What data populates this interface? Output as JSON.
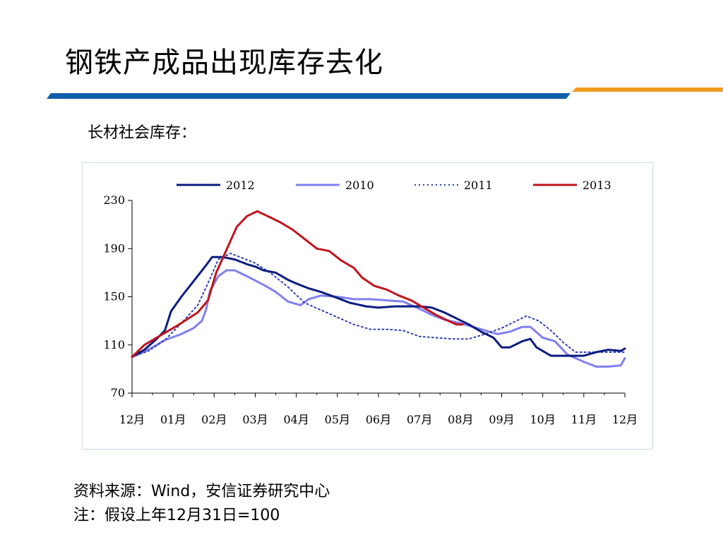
{
  "slide": {
    "title": "钢铁产成品出现库存去化",
    "subtitle": "长材社会库存：",
    "source_note": "资料来源：Wind，安信证券研究中心",
    "assumption_note": "注：假设上年12月31日=100",
    "colors": {
      "blue_bar": "#0f5ca8",
      "orange_bar": "#f39a1e"
    }
  },
  "chart_data": {
    "type": "line",
    "title": "",
    "xlabel": "",
    "ylabel": "",
    "ylim": [
      70,
      230
    ],
    "yticks": [
      70,
      110,
      150,
      190,
      230
    ],
    "xlim": [
      0,
      12
    ],
    "xtick_labels": [
      "12月",
      "01月",
      "02月",
      "03月",
      "04月",
      "05月",
      "06月",
      "07月",
      "08月",
      "09月",
      "10月",
      "11月",
      "12月"
    ],
    "legend_position": "top",
    "grid": false,
    "series": [
      {
        "name": "2012",
        "color": "#0b1c80",
        "dash": "solid",
        "points": [
          [
            0,
            100
          ],
          [
            0.3,
            106
          ],
          [
            0.6,
            115
          ],
          [
            0.8,
            122
          ],
          [
            0.95,
            138
          ],
          [
            1.2,
            150
          ],
          [
            1.5,
            163
          ],
          [
            1.8,
            176
          ],
          [
            1.95,
            183
          ],
          [
            2.2,
            183
          ],
          [
            2.5,
            181
          ],
          [
            2.8,
            177
          ],
          [
            3.0,
            175
          ],
          [
            3.2,
            172
          ],
          [
            3.5,
            170
          ],
          [
            3.8,
            164
          ],
          [
            4.0,
            161
          ],
          [
            4.3,
            157
          ],
          [
            4.6,
            154
          ],
          [
            5.0,
            149
          ],
          [
            5.3,
            145
          ],
          [
            5.7,
            142
          ],
          [
            6.0,
            141
          ],
          [
            6.4,
            142
          ],
          [
            6.7,
            142
          ],
          [
            7.0,
            142
          ],
          [
            7.3,
            141
          ],
          [
            7.6,
            137
          ],
          [
            7.9,
            132
          ],
          [
            8.2,
            127
          ],
          [
            8.5,
            121
          ],
          [
            8.8,
            116
          ],
          [
            9.0,
            108
          ],
          [
            9.2,
            108
          ],
          [
            9.5,
            113
          ],
          [
            9.7,
            115
          ],
          [
            9.85,
            108
          ],
          [
            10.2,
            101
          ],
          [
            10.6,
            101
          ],
          [
            11.0,
            101
          ],
          [
            11.3,
            104
          ],
          [
            11.6,
            106
          ],
          [
            11.9,
            105
          ],
          [
            12.0,
            107
          ]
        ]
      },
      {
        "name": "2010",
        "color": "#8080f0",
        "dash": "solid",
        "points": [
          [
            0,
            100
          ],
          [
            0.4,
            106
          ],
          [
            0.8,
            114
          ],
          [
            1.2,
            119
          ],
          [
            1.5,
            124
          ],
          [
            1.7,
            130
          ],
          [
            1.8,
            139
          ],
          [
            1.9,
            155
          ],
          [
            2.1,
            167
          ],
          [
            2.3,
            172
          ],
          [
            2.5,
            172
          ],
          [
            2.8,
            167
          ],
          [
            3.2,
            160
          ],
          [
            3.5,
            154
          ],
          [
            3.8,
            146
          ],
          [
            4.1,
            143
          ],
          [
            4.3,
            148
          ],
          [
            4.6,
            151
          ],
          [
            5.0,
            150
          ],
          [
            5.4,
            148
          ],
          [
            5.8,
            148
          ],
          [
            6.2,
            147
          ],
          [
            6.6,
            146
          ],
          [
            7.0,
            140
          ],
          [
            7.3,
            135
          ],
          [
            7.6,
            131
          ],
          [
            8.0,
            128
          ],
          [
            8.5,
            123
          ],
          [
            8.9,
            119
          ],
          [
            9.2,
            121
          ],
          [
            9.5,
            125
          ],
          [
            9.7,
            125
          ],
          [
            10.0,
            116
          ],
          [
            10.3,
            113
          ],
          [
            10.6,
            102
          ],
          [
            11.0,
            96
          ],
          [
            11.3,
            92
          ],
          [
            11.6,
            92
          ],
          [
            11.9,
            93
          ],
          [
            12.0,
            99
          ]
        ]
      },
      {
        "name": "2011",
        "color": "#2d3fb8",
        "dash": "dotted",
        "points": [
          [
            0,
            100
          ],
          [
            0.4,
            105
          ],
          [
            0.8,
            114
          ],
          [
            1.2,
            128
          ],
          [
            1.6,
            143
          ],
          [
            1.9,
            165
          ],
          [
            2.1,
            181
          ],
          [
            2.4,
            186
          ],
          [
            2.7,
            182
          ],
          [
            3.0,
            178
          ],
          [
            3.4,
            169
          ],
          [
            3.8,
            158
          ],
          [
            4.2,
            145
          ],
          [
            4.6,
            139
          ],
          [
            5.0,
            133
          ],
          [
            5.4,
            127
          ],
          [
            5.8,
            123
          ],
          [
            6.2,
            123
          ],
          [
            6.6,
            122
          ],
          [
            7.0,
            117
          ],
          [
            7.4,
            116
          ],
          [
            7.8,
            115
          ],
          [
            8.2,
            115
          ],
          [
            8.6,
            119
          ],
          [
            9.0,
            124
          ],
          [
            9.3,
            129
          ],
          [
            9.6,
            134
          ],
          [
            9.9,
            130
          ],
          [
            10.2,
            122
          ],
          [
            10.5,
            112
          ],
          [
            10.8,
            104
          ],
          [
            11.2,
            104
          ],
          [
            11.6,
            104
          ],
          [
            12.0,
            104
          ]
        ]
      },
      {
        "name": "2013",
        "color": "#c0141c",
        "dash": "solid",
        "points": [
          [
            0,
            100
          ],
          [
            0.3,
            110
          ],
          [
            0.7,
            118
          ],
          [
            1.1,
            126
          ],
          [
            1.6,
            137
          ],
          [
            1.85,
            147
          ],
          [
            2.05,
            170
          ],
          [
            2.3,
            189
          ],
          [
            2.55,
            208
          ],
          [
            2.8,
            217
          ],
          [
            3.05,
            221
          ],
          [
            3.3,
            217
          ],
          [
            3.6,
            212
          ],
          [
            3.9,
            206
          ],
          [
            4.2,
            198
          ],
          [
            4.5,
            190
          ],
          [
            4.8,
            188
          ],
          [
            5.1,
            180
          ],
          [
            5.4,
            174
          ],
          [
            5.6,
            166
          ],
          [
            5.9,
            159
          ],
          [
            6.2,
            156
          ],
          [
            6.5,
            151
          ],
          [
            6.8,
            147
          ],
          [
            7.1,
            141
          ],
          [
            7.4,
            135
          ],
          [
            7.7,
            130
          ],
          [
            7.9,
            127
          ],
          [
            8.05,
            127
          ]
        ]
      }
    ]
  }
}
